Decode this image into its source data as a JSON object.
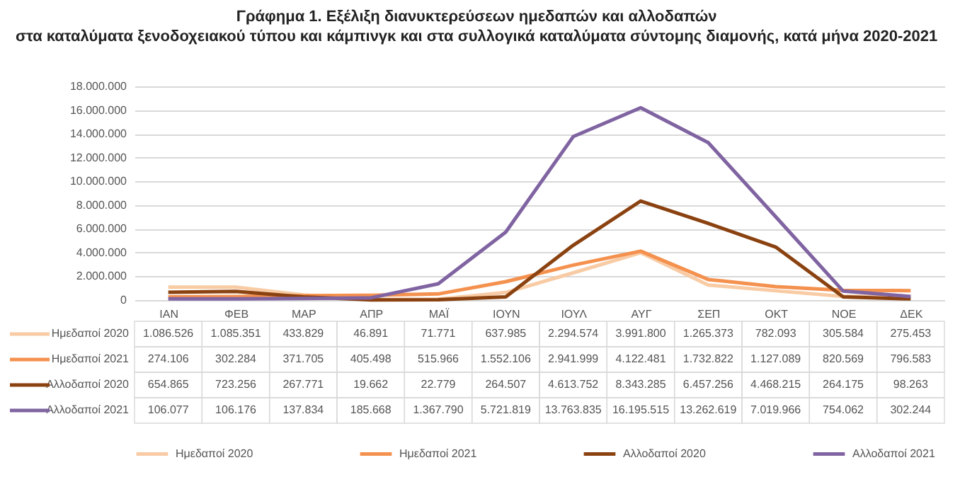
{
  "chart_data": {
    "type": "line",
    "title": "Γράφημα 1. Εξέλιξη διανυκτερεύσεων ημεδαπών και αλλοδαπών",
    "subtitle": "στα καταλύματα ξενοδοχειακού τύπου και κάμπινγκ και στα συλλογικά καταλύματα σύντομης διαμονής, κατά μήνα 2020-2021",
    "categories": [
      "ΙΑΝ",
      "ΦΕΒ",
      "ΜΑΡ",
      "ΑΠΡ",
      "ΜΑΪ",
      "ΙΟΥΝ",
      "ΙΟΥΛ",
      "ΑΥΓ",
      "ΣΕΠ",
      "ΟΚΤ",
      "ΝΟΕ",
      "ΔΕΚ"
    ],
    "series": [
      {
        "name": "Ημεδαποί 2020",
        "color": "#f8cba4",
        "values": [
          1086526,
          1085351,
          433829,
          46891,
          71771,
          637985,
          2294574,
          3991800,
          1265373,
          782093,
          305584,
          275453
        ],
        "value_labels": [
          "1.086.526",
          "1.085.351",
          "433.829",
          "46.891",
          "71.771",
          "637.985",
          "2.294.574",
          "3.991.800",
          "1.265.373",
          "782.093",
          "305.584",
          "275.453"
        ]
      },
      {
        "name": "Ημεδαποί 2021",
        "color": "#f4914e",
        "values": [
          274106,
          302284,
          371705,
          405498,
          515966,
          1552106,
          2941999,
          4122481,
          1732822,
          1127089,
          820569,
          796583
        ],
        "value_labels": [
          "274.106",
          "302.284",
          "371.705",
          "405.498",
          "515.966",
          "1.552.106",
          "2.941.999",
          "4.122.481",
          "1.732.822",
          "1.127.089",
          "820.569",
          "796.583"
        ]
      },
      {
        "name": "Αλλοδαποί 2020",
        "color": "#8b4211",
        "values": [
          654865,
          723256,
          267771,
          19662,
          22779,
          264507,
          4613752,
          8343285,
          6457256,
          4468215,
          264175,
          98263
        ],
        "value_labels": [
          "654.865",
          "723.256",
          "267.771",
          "19.662",
          "22.779",
          "264.507",
          "4.613.752",
          "8.343.285",
          "6.457.256",
          "4.468.215",
          "264.175",
          "98.263"
        ]
      },
      {
        "name": "Αλλοδαποί 2021",
        "color": "#8064a2",
        "values": [
          106077,
          106176,
          137834,
          185668,
          1367790,
          5721819,
          13763835,
          16195515,
          13262619,
          7019966,
          754062,
          302244
        ],
        "value_labels": [
          "106.077",
          "106.176",
          "137.834",
          "185.668",
          "1.367.790",
          "5.721.819",
          "13.763.835",
          "16.195.515",
          "13.262.619",
          "7.019.966",
          "754.062",
          "302.244"
        ]
      }
    ],
    "ylim": [
      0,
      18000000
    ],
    "yticks": [
      0,
      {
        "value": 2000000,
        "label": "2.000.000"
      },
      {
        "value": 4000000,
        "label": "4.000.000"
      },
      {
        "value": 6000000,
        "label": "6.000.000"
      },
      {
        "value": 8000000,
        "label": "8.000.000"
      },
      {
        "value": 10000000,
        "label": "10.000.000"
      },
      {
        "value": 12000000,
        "label": "12.000.000"
      },
      {
        "value": 14000000,
        "label": "14.000.000"
      },
      {
        "value": 16000000,
        "label": "16.000.000"
      },
      {
        "value": 18000000,
        "label": "18.000.000"
      }
    ],
    "grid": "y",
    "legend": "bottom"
  }
}
